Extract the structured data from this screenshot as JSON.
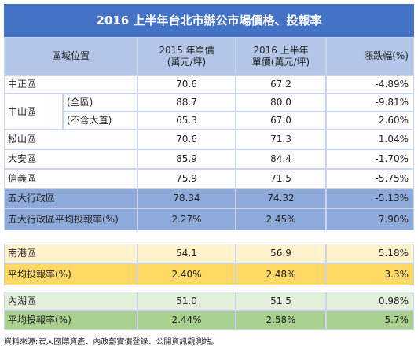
{
  "title": "2016 上半年台北市辦公市場價格、投報率",
  "table": {
    "header": [
      [
        "區域位置"
      ],
      [
        "2015 年單價",
        "(萬元/坪)"
      ],
      [
        "2016 上半年",
        "單價(萬元/坪)"
      ],
      [
        "漲跌幅(%)"
      ]
    ],
    "rows": [
      [
        "中正區",
        "70.6",
        "67.2",
        "-4.89%"
      ],
      [
        "松山區",
        "70.6",
        "71.3",
        "1.04%"
      ],
      [
        "大安區",
        "85.9",
        "84.4",
        "-1.70%"
      ],
      [
        "信義區",
        "75.9",
        "71.5",
        "-5.75%"
      ],
      [
        "五大行政區",
        "78.34",
        "74.32",
        "-5.13%"
      ],
      [
        "五大行政區平均投報率(%)",
        "2.27%",
        "2.45%",
        "7.90%"
      ]
    ],
    "zhongshan": {
      "label": "中山區",
      "rows": [
        [
          "(全區)",
          "88.7",
          "80.0",
          "-9.81%"
        ],
        [
          "(不含大直)",
          "65.3",
          "67.0",
          "2.60%"
        ]
      ]
    },
    "nangang": [
      [
        "南港區",
        "54.1",
        "56.9",
        "5.18%"
      ],
      [
        "平均投報率(%)",
        "2.40%",
        "2.48%",
        "3.3%"
      ]
    ],
    "neihu": [
      [
        "內湖區",
        "51.0",
        "51.5",
        "0.98%"
      ],
      [
        "平均投報率(%)",
        "2.44%",
        "2.58%",
        "5.7%"
      ]
    ]
  },
  "footer": "資料來源:宏大國際資產、內政部實價登錄、公開資訊觀測站。"
}
